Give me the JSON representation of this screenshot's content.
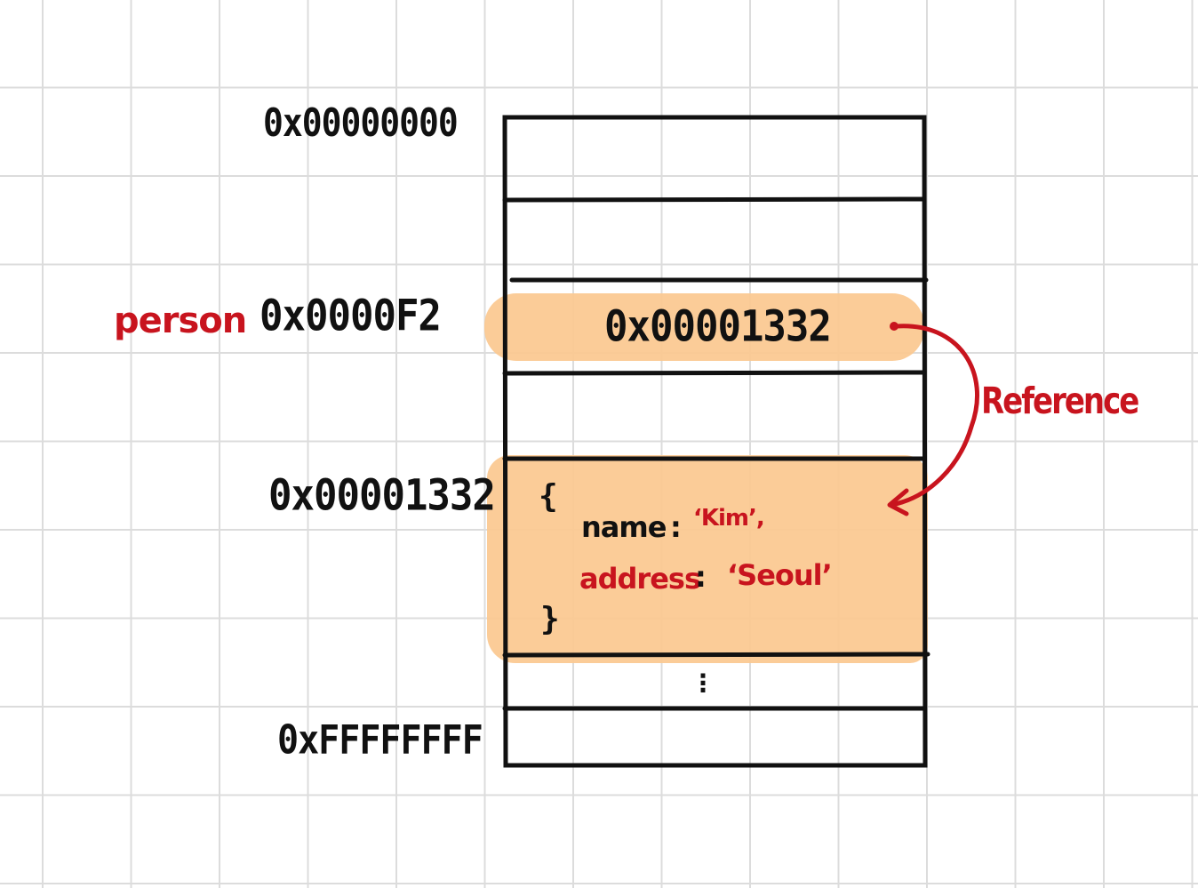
{
  "addresses": {
    "start": "0x00000000",
    "person": "0x0000F2",
    "object": "0x00001332",
    "end": "0xFFFFFFFF"
  },
  "variable": {
    "name": "person"
  },
  "cells": {
    "person_value": "0x00001332",
    "object_open": "{",
    "object_close": "}",
    "ellipsis": "⋮"
  },
  "object_props": [
    {
      "key": "name",
      "colon": ":",
      "value": "‘Kim’,"
    },
    {
      "key": "address",
      "colon": ":",
      "value": "‘Seoul’"
    }
  ],
  "arrow": {
    "label": "Reference"
  },
  "colors": {
    "highlight": "#fbc88f",
    "annotation": "#c8141e",
    "ink": "#111111",
    "grid": "#dcdcdc"
  }
}
